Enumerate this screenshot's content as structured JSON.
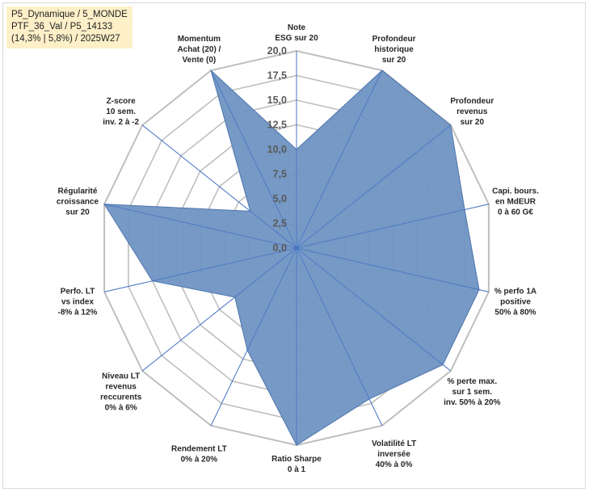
{
  "header": {
    "lines": [
      "P5_Dynamique / 5_MONDE",
      "PTF_36_Val / P5_14133",
      "(14,3% | 5,8%) / 2025W27"
    ]
  },
  "chart_data": {
    "type": "radar",
    "rmin": 0,
    "rmax": 20,
    "ticks": [
      "0,0",
      "2,5",
      "5,0",
      "7,5",
      "10,0",
      "12,5",
      "15,0",
      "17,5",
      "20,0"
    ],
    "categories": [
      [
        "Note",
        "ESG sur 20"
      ],
      [
        "Profondeur",
        "historique",
        "sur 20"
      ],
      [
        "Profondeur",
        "revenus",
        "sur 20"
      ],
      [
        "Capi. bours.",
        "en MdEUR",
        "0 à 60 G€"
      ],
      [
        "% perfo 1A",
        "positive",
        "50% à 80%"
      ],
      [
        "% perte max.",
        "sur 1 sem.",
        "inv. 50% à 20%"
      ],
      [
        "Volatilité LT",
        "inversée",
        "40% à 0%"
      ],
      [
        "Ratio Sharpe",
        "0 à 1"
      ],
      [
        "Rendement LT",
        "0% à 20%"
      ],
      [
        "Niveau LT",
        "revenus",
        "reccurents",
        "0% à 6%"
      ],
      [
        "Perfo. LT",
        "vs index",
        "-8% à 12%"
      ],
      [
        "Régularité",
        "croissance",
        "sur 20"
      ],
      [
        "Z-score",
        "10 sem.",
        "inv. 2 à -2"
      ],
      [
        "Momentum",
        "Achat (20) /",
        "Vente (0)"
      ]
    ],
    "series": [
      {
        "values": [
          10.0,
          20.0,
          20.0,
          17.5,
          19.0,
          19.0,
          17.0,
          20.0,
          11.5,
          8.0,
          15.0,
          20.0,
          6.0,
          20.0
        ]
      }
    ],
    "colors": {
      "fill": "#6f93c3",
      "stroke": "#4f76ad",
      "grid": "#bfbfbf",
      "spoke": "#4472c4"
    }
  }
}
